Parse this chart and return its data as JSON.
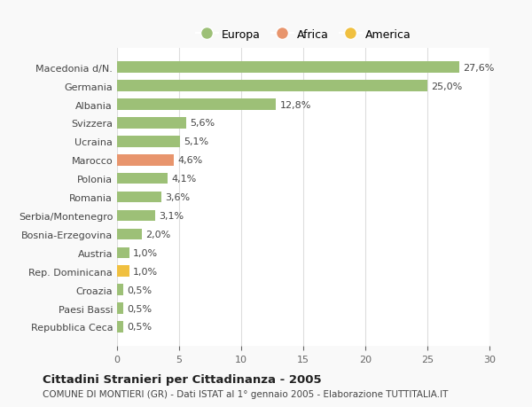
{
  "categories": [
    "Repubblica Ceca",
    "Paesi Bassi",
    "Croazia",
    "Rep. Dominicana",
    "Austria",
    "Bosnia-Erzegovina",
    "Serbia/Montenegro",
    "Romania",
    "Polonia",
    "Marocco",
    "Ucraina",
    "Svizzera",
    "Albania",
    "Germania",
    "Macedonia d/N."
  ],
  "values": [
    0.5,
    0.5,
    0.5,
    1.0,
    1.0,
    2.0,
    3.1,
    3.6,
    4.1,
    4.6,
    5.1,
    5.6,
    12.8,
    25.0,
    27.6
  ],
  "labels": [
    "0,5%",
    "0,5%",
    "0,5%",
    "1,0%",
    "1,0%",
    "2,0%",
    "3,1%",
    "3,6%",
    "4,1%",
    "4,6%",
    "5,1%",
    "5,6%",
    "12,8%",
    "25,0%",
    "27,6%"
  ],
  "colors": [
    "#9dc077",
    "#9dc077",
    "#9dc077",
    "#f0c040",
    "#9dc077",
    "#9dc077",
    "#9dc077",
    "#9dc077",
    "#9dc077",
    "#e8956d",
    "#9dc077",
    "#9dc077",
    "#9dc077",
    "#9dc077",
    "#9dc077"
  ],
  "legend_labels": [
    "Europa",
    "Africa",
    "America"
  ],
  "legend_colors": [
    "#9dc077",
    "#e8956d",
    "#f0c040"
  ],
  "title": "Cittadini Stranieri per Cittadinanza - 2005",
  "subtitle": "COMUNE DI MONTIERI (GR) - Dati ISTAT al 1° gennaio 2005 - Elaborazione TUTTITALIA.IT",
  "xlim": [
    0,
    30
  ],
  "xticks": [
    0,
    5,
    10,
    15,
    20,
    25,
    30
  ],
  "background_color": "#f9f9f9",
  "plot_background": "#ffffff",
  "grid_color": "#dddddd"
}
